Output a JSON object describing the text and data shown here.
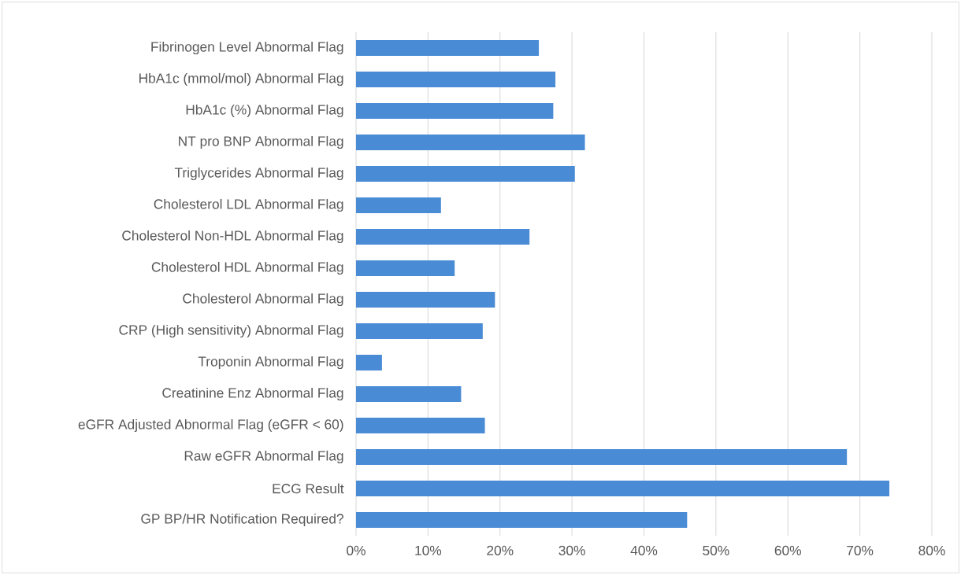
{
  "chart_data": {
    "type": "bar",
    "orientation": "horizontal",
    "categories": [
      "Fibrinogen Level  Abnormal Flag",
      "HbA1c (mmol/mol) Abnormal Flag",
      "HbA1c (%)  Abnormal Flag",
      "NT pro BNP Abnormal Flag",
      "Triglycerides Abnormal Flag",
      "Cholesterol LDL Abnormal Flag",
      "Cholesterol Non-HDL Abnormal Flag",
      "Cholesterol HDL Abnormal Flag",
      "Cholesterol Abnormal Flag",
      "CRP (High sensitivity) Abnormal Flag",
      "Troponin Abnormal Flag",
      "Creatinine Enz  Abnormal Flag",
      "eGFR Adjusted Abnormal Flag (eGFR < 60)",
      "Raw eGFR  Abnormal Flag",
      "ECG Result",
      "GP BP/HR Notification Required?"
    ],
    "values": [
      25.4,
      27.7,
      27.4,
      31.8,
      30.4,
      11.8,
      24.1,
      13.7,
      19.3,
      17.6,
      3.6,
      14.6,
      17.9,
      68.2,
      74.1,
      46.0
    ],
    "color": "#4a8bd6",
    "xlim": [
      0,
      80
    ],
    "xticks": [
      {
        "value": 0,
        "label": "0%"
      },
      {
        "value": 10,
        "label": "10%"
      },
      {
        "value": 20,
        "label": "20%"
      },
      {
        "value": 30,
        "label": "30%"
      },
      {
        "value": 40,
        "label": "40%"
      },
      {
        "value": 50,
        "label": "50%"
      },
      {
        "value": 60,
        "label": "60%"
      },
      {
        "value": 70,
        "label": "70%"
      },
      {
        "value": 80,
        "label": "80%"
      }
    ],
    "grid": "x"
  }
}
